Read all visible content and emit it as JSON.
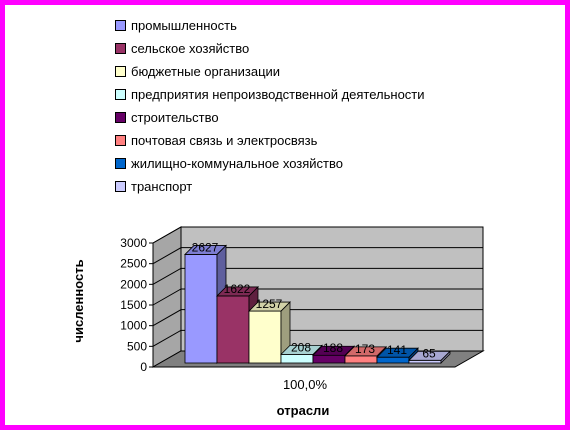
{
  "chart_data": {
    "type": "bar",
    "ylabel": "численность",
    "xlabel": "отрасли",
    "category_label": "100,0%",
    "ylim": [
      0,
      3000
    ],
    "yticks": [
      "0",
      "500",
      "1000",
      "1500",
      "2000",
      "2500",
      "3000"
    ],
    "legend_position": "top",
    "three_d": true,
    "series": [
      {
        "name": "промышленность",
        "value": 2627,
        "label": "2627",
        "color": "#9999ff"
      },
      {
        "name": "сельское хозяйство",
        "value": 1622,
        "label": "1622",
        "color": "#993366"
      },
      {
        "name": "бюджетные организации",
        "value": 1257,
        "label": "1257",
        "color": "#ffffcc"
      },
      {
        "name": "предприятия непроизводственной деятельности",
        "value": 208,
        "label": "208",
        "color": "#ccffff"
      },
      {
        "name": "строительство",
        "value": 188,
        "label": "188",
        "color": "#660066"
      },
      {
        "name": "почтовая связь и электросвязь",
        "value": 173,
        "label": "173",
        "color": "#ff8080"
      },
      {
        "name": "жилищно-коммунальное хозяйство",
        "value": 141,
        "label": "141",
        "color": "#0066cc"
      },
      {
        "name": "транспорт",
        "value": 65,
        "label": "65",
        "color": "#ccccff"
      }
    ]
  }
}
